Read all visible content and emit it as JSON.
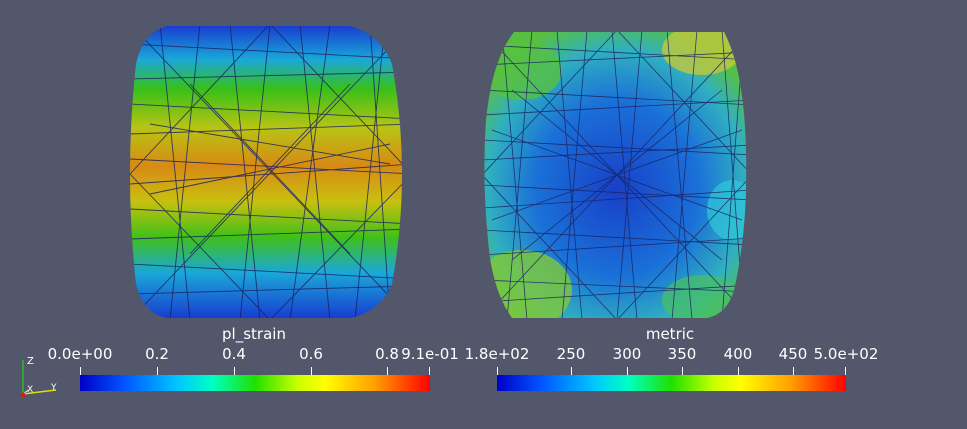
{
  "left_mesh": {
    "name": "pl_strain-mesh",
    "colors": {
      "low": "#1f3fd6",
      "mid": "#35c21a",
      "high": "#d98a14",
      "edge": "#1b2260"
    }
  },
  "right_mesh": {
    "name": "metric-mesh",
    "colors": {
      "low": "#1a57d8",
      "mid": "#4fc44a",
      "high": "#c8c830",
      "edge": "#1b2260"
    }
  },
  "colorbar_left": {
    "title": "pl_strain",
    "ticks": [
      "0.0e+00",
      "0.2",
      "0.4",
      "0.6",
      "0.8",
      "9.1e-01"
    ]
  },
  "colorbar_right": {
    "title": "metric",
    "ticks": [
      "1.8e+02",
      "250",
      "300",
      "350",
      "400",
      "450",
      "5.0e+02"
    ]
  },
  "axes": {
    "z": "Z",
    "x": "X",
    "y": "Y"
  },
  "colors": {
    "background": "#52576b",
    "axis_z": "#22c022",
    "axis_y": "#e0e000",
    "axis_x": "#cc2222"
  }
}
